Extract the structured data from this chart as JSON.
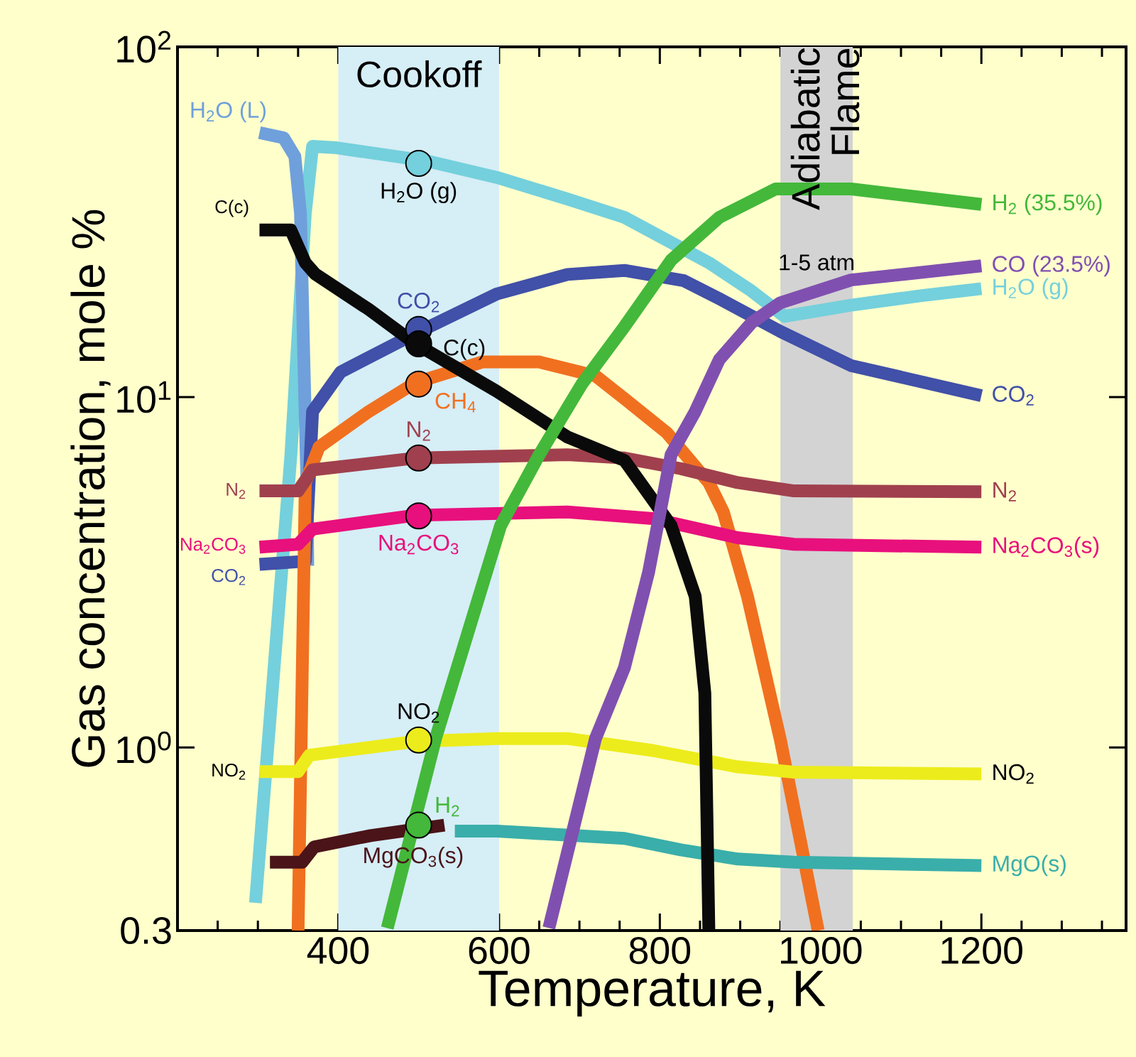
{
  "chart_data": {
    "type": "line",
    "xlabel": "Temperature, K",
    "ylabel": "Gas concentration, mole %",
    "log": true,
    "xlim": [
      200,
      1380
    ],
    "ylim": [
      0.3,
      100
    ],
    "xticks": [
      400,
      600,
      800,
      1000,
      1200
    ],
    "yticks": [
      0.3,
      {
        "value": 1,
        "label": "10$^{0}$"
      },
      {
        "value": 10,
        "label": "10$^{1}$"
      },
      {
        "value": 100,
        "label": "10$^{2}$"
      }
    ],
    "bands": [
      {
        "axis": "x",
        "from": 400,
        "to": 600,
        "label": "Cookoff",
        "color": "#d6eef6"
      },
      {
        "axis": "x",
        "from": 950,
        "to": 1040,
        "label": "Adiabatic Flame",
        "color": "#d3d3d3"
      }
    ],
    "series": [
      {
        "name": "H$_{2}$O (g)",
        "color": "#74d0dc",
        "x": [
          297,
          341,
          359,
          368,
          398,
          509,
          597,
          685,
          756,
          861,
          914,
          955,
          1038,
          1126,
          1200
        ],
        "values": [
          0.36,
          6.8,
          33.5,
          52,
          51.5,
          47.3,
          42.4,
          36.8,
          32.6,
          24.2,
          20.1,
          17.0,
          18.3,
          19.5,
          20.4
        ]
      },
      {
        "color": "#6fa0dc",
        "x": [
          302,
          332,
          346,
          353,
          357,
          361,
          362
        ],
        "values": [
          56.9,
          55,
          48.7,
          33.5,
          13.2,
          5.7,
          3.3
        ]
      },
      {
        "name": "CO$_{2}$",
        "color": "#4150a8",
        "x": [
          302,
          359,
          368,
          403,
          496,
          597,
          685,
          756,
          830,
          874,
          950,
          1038,
          1200
        ],
        "values": [
          3.33,
          3.4,
          9.1,
          11.8,
          15.2,
          19.7,
          22.4,
          23.0,
          21.5,
          19.1,
          15.4,
          12.3,
          10.1
        ]
      },
      {
        "color": "#f07020",
        "x": [
          350,
          359,
          376,
          438,
          496,
          579,
          650,
          720,
          756,
          809,
          861,
          879,
          909,
          950,
          997
        ],
        "values": [
          0.3,
          5.7,
          7.2,
          9.1,
          11.0,
          12.6,
          12.6,
          11.5,
          9.9,
          7.9,
          5.7,
          4.7,
          2.7,
          1.05,
          0.3
        ]
      },
      {
        "name": "N$_{2}$",
        "color": "#a0404e",
        "x": [
          302,
          350,
          368,
          496,
          685,
          756,
          826,
          897,
          967,
          1200
        ],
        "values": [
          5.4,
          5.4,
          6.2,
          6.7,
          6.85,
          6.7,
          6.25,
          5.7,
          5.4,
          5.37
        ]
      },
      {
        "name": "Na$_{2}$CO$_{3}$(s)",
        "color": "#e8107c",
        "x": [
          302,
          350,
          368,
          496,
          685,
          791,
          897,
          967,
          1200
        ],
        "values": [
          3.73,
          3.8,
          4.2,
          4.6,
          4.7,
          4.5,
          3.97,
          3.8,
          3.73
        ]
      },
      {
        "name": "NO$_{2}$",
        "color": "#ecec1c",
        "x": [
          302,
          350,
          364,
          496,
          597,
          685,
          791,
          897,
          967,
          1200
        ],
        "values": [
          0.853,
          0.853,
          0.95,
          1.04,
          1.06,
          1.06,
          0.98,
          0.88,
          0.85,
          0.84
        ]
      },
      {
        "color": "#4a1418",
        "x": [
          315,
          355,
          370,
          440,
          532
        ],
        "values": [
          0.47,
          0.47,
          0.52,
          0.56,
          0.6
        ]
      },
      {
        "name": "MgO(s)",
        "color": "#3aaeaa",
        "x": [
          545,
          597,
          756,
          826,
          897,
          967,
          1200
        ],
        "values": [
          0.577,
          0.577,
          0.55,
          0.51,
          0.48,
          0.47,
          0.46
        ]
      },
      {
        "color": "#0a0a0a",
        "x": [
          302,
          341,
          359,
          371,
          438,
          496,
          597,
          685,
          756,
          814,
          844,
          856,
          861
        ],
        "values": [
          30,
          30,
          24.2,
          22.5,
          17.8,
          14.2,
          10.4,
          7.7,
          6.6,
          4.3,
          2.7,
          1.43,
          0.3
        ]
      },
      {
        "name": "H$_{2}$ (35.5%)",
        "color": "#44b83a",
        "x": [
          461,
          521,
          602,
          650,
          703,
          756,
          814,
          874,
          944,
          1038,
          1200
        ],
        "values": [
          0.305,
          1.06,
          4.3,
          6.85,
          10.9,
          15.9,
          24.6,
          32.6,
          39.3,
          39.3,
          35.5
        ]
      },
      {
        "name": "CO (23.5%)",
        "color": "#8050b0",
        "x": [
          662,
          720,
          756,
          786,
          814,
          844,
          874,
          914,
          950,
          1038,
          1200
        ],
        "values": [
          0.305,
          1.06,
          1.69,
          3.16,
          6.85,
          9.1,
          12.8,
          16.3,
          18.6,
          21.6,
          23.7
        ]
      },
      {
        "type": "scatter",
        "marker": "circle",
        "x": [
          500,
          500,
          500,
          500,
          500,
          500,
          500,
          500
        ],
        "values": [
          46.5,
          15.6,
          14.2,
          10.9,
          6.7,
          4.58,
          1.05,
          0.6
        ],
        "colors": [
          "#74d0dc",
          "#4150a8",
          "#0a0a0a",
          "#f07020",
          "#a0404e",
          "#e8107c",
          "#ecec1c",
          "#44b83a"
        ]
      }
    ],
    "annotations": [
      {
        "text": "H$_{2}$O (L)",
        "x": 302,
        "y": 56.9
      },
      {
        "text": "C(c)",
        "x": 302,
        "y": 30
      },
      {
        "text": "H$_{2}$O (g)",
        "x": 500,
        "y": 46.5
      },
      {
        "text": "CO$_{2}$",
        "x": 500,
        "y": 15.6
      },
      {
        "text": "C(c)",
        "x": 500,
        "y": 14.2
      },
      {
        "text": "CH$_{4}$",
        "x": 500,
        "y": 10.9
      },
      {
        "text": "N$_{2}$",
        "x": 500,
        "y": 6.7
      },
      {
        "text": "N$_{2}$",
        "x": 302,
        "y": 5.4
      },
      {
        "text": "Na$_{2}$CO$_{3}$",
        "x": 302,
        "y": 3.73
      },
      {
        "text": "CO$_{2}$",
        "x": 302,
        "y": 3.33
      },
      {
        "text": "Na$_{2}$CO$_{3}$",
        "x": 500,
        "y": 4.58
      },
      {
        "text": "NO$_{2}$",
        "x": 500,
        "y": 1.05
      },
      {
        "text": "NO$_{2}$",
        "x": 302,
        "y": 0.853
      },
      {
        "text": "H$_{2}$",
        "x": 500,
        "y": 0.6
      },
      {
        "text": "MgCO$_{3}$(s)",
        "x": 532,
        "y": 0.6
      },
      "1-5 atm"
    ]
  }
}
